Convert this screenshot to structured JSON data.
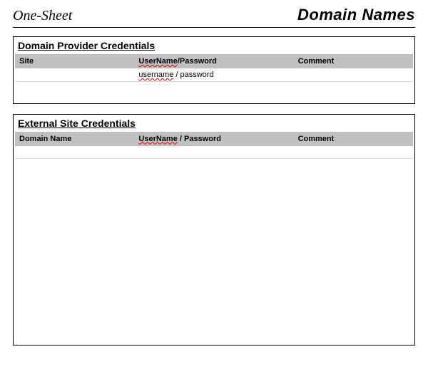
{
  "header": {
    "left": "One-Sheet",
    "right": "Domain Names"
  },
  "panel1": {
    "title": "Domain Provider Credentials",
    "columns": {
      "a": "Site",
      "b_word1": "UserName",
      "b_sep": "/",
      "b_word2": "Password",
      "c": "Comment"
    },
    "row1": {
      "site": "",
      "cred_user": "username",
      "cred_sep": " / ",
      "cred_pass": "password",
      "comment": ""
    }
  },
  "panel2": {
    "title": "External Site Credentials",
    "columns": {
      "a": "Domain Name",
      "b_word1": "UserName",
      "b_sep": " / ",
      "b_word2": "Password",
      "c": "Comment"
    }
  },
  "colors": {
    "header_bg": "#c0c0c0",
    "row_border": "#d9d9d9",
    "spell_wave": "#d00000"
  }
}
